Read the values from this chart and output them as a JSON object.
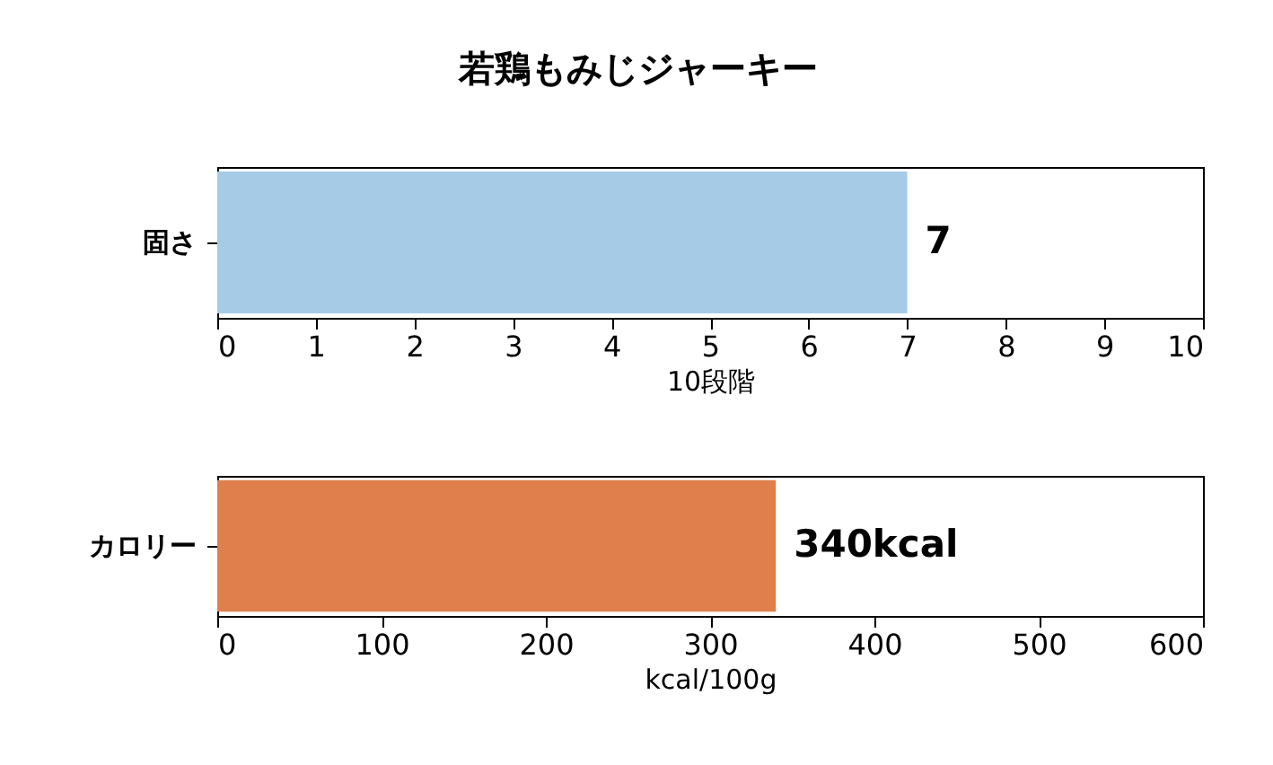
{
  "chart_data": [
    {
      "type": "bar",
      "orientation": "horizontal",
      "title": "若鶏もみじジャーキー",
      "categories": [
        "固さ"
      ],
      "values": [
        7
      ],
      "color": "#a6cbe6",
      "value_labels": [
        "7"
      ],
      "xlabel": "10段階",
      "xlim": [
        0,
        10
      ],
      "xticks": [
        0,
        1,
        2,
        3,
        4,
        5,
        6,
        7,
        8,
        9,
        10
      ],
      "grid": false
    },
    {
      "type": "bar",
      "orientation": "horizontal",
      "categories": [
        "カロリー"
      ],
      "values": [
        340
      ],
      "color": "#e07f4c",
      "value_labels": [
        "340kcal"
      ],
      "xlabel": "kcal/100g",
      "xlim": [
        0,
        600
      ],
      "xticks": [
        0,
        100,
        200,
        300,
        400,
        500,
        600
      ],
      "grid": false
    }
  ]
}
